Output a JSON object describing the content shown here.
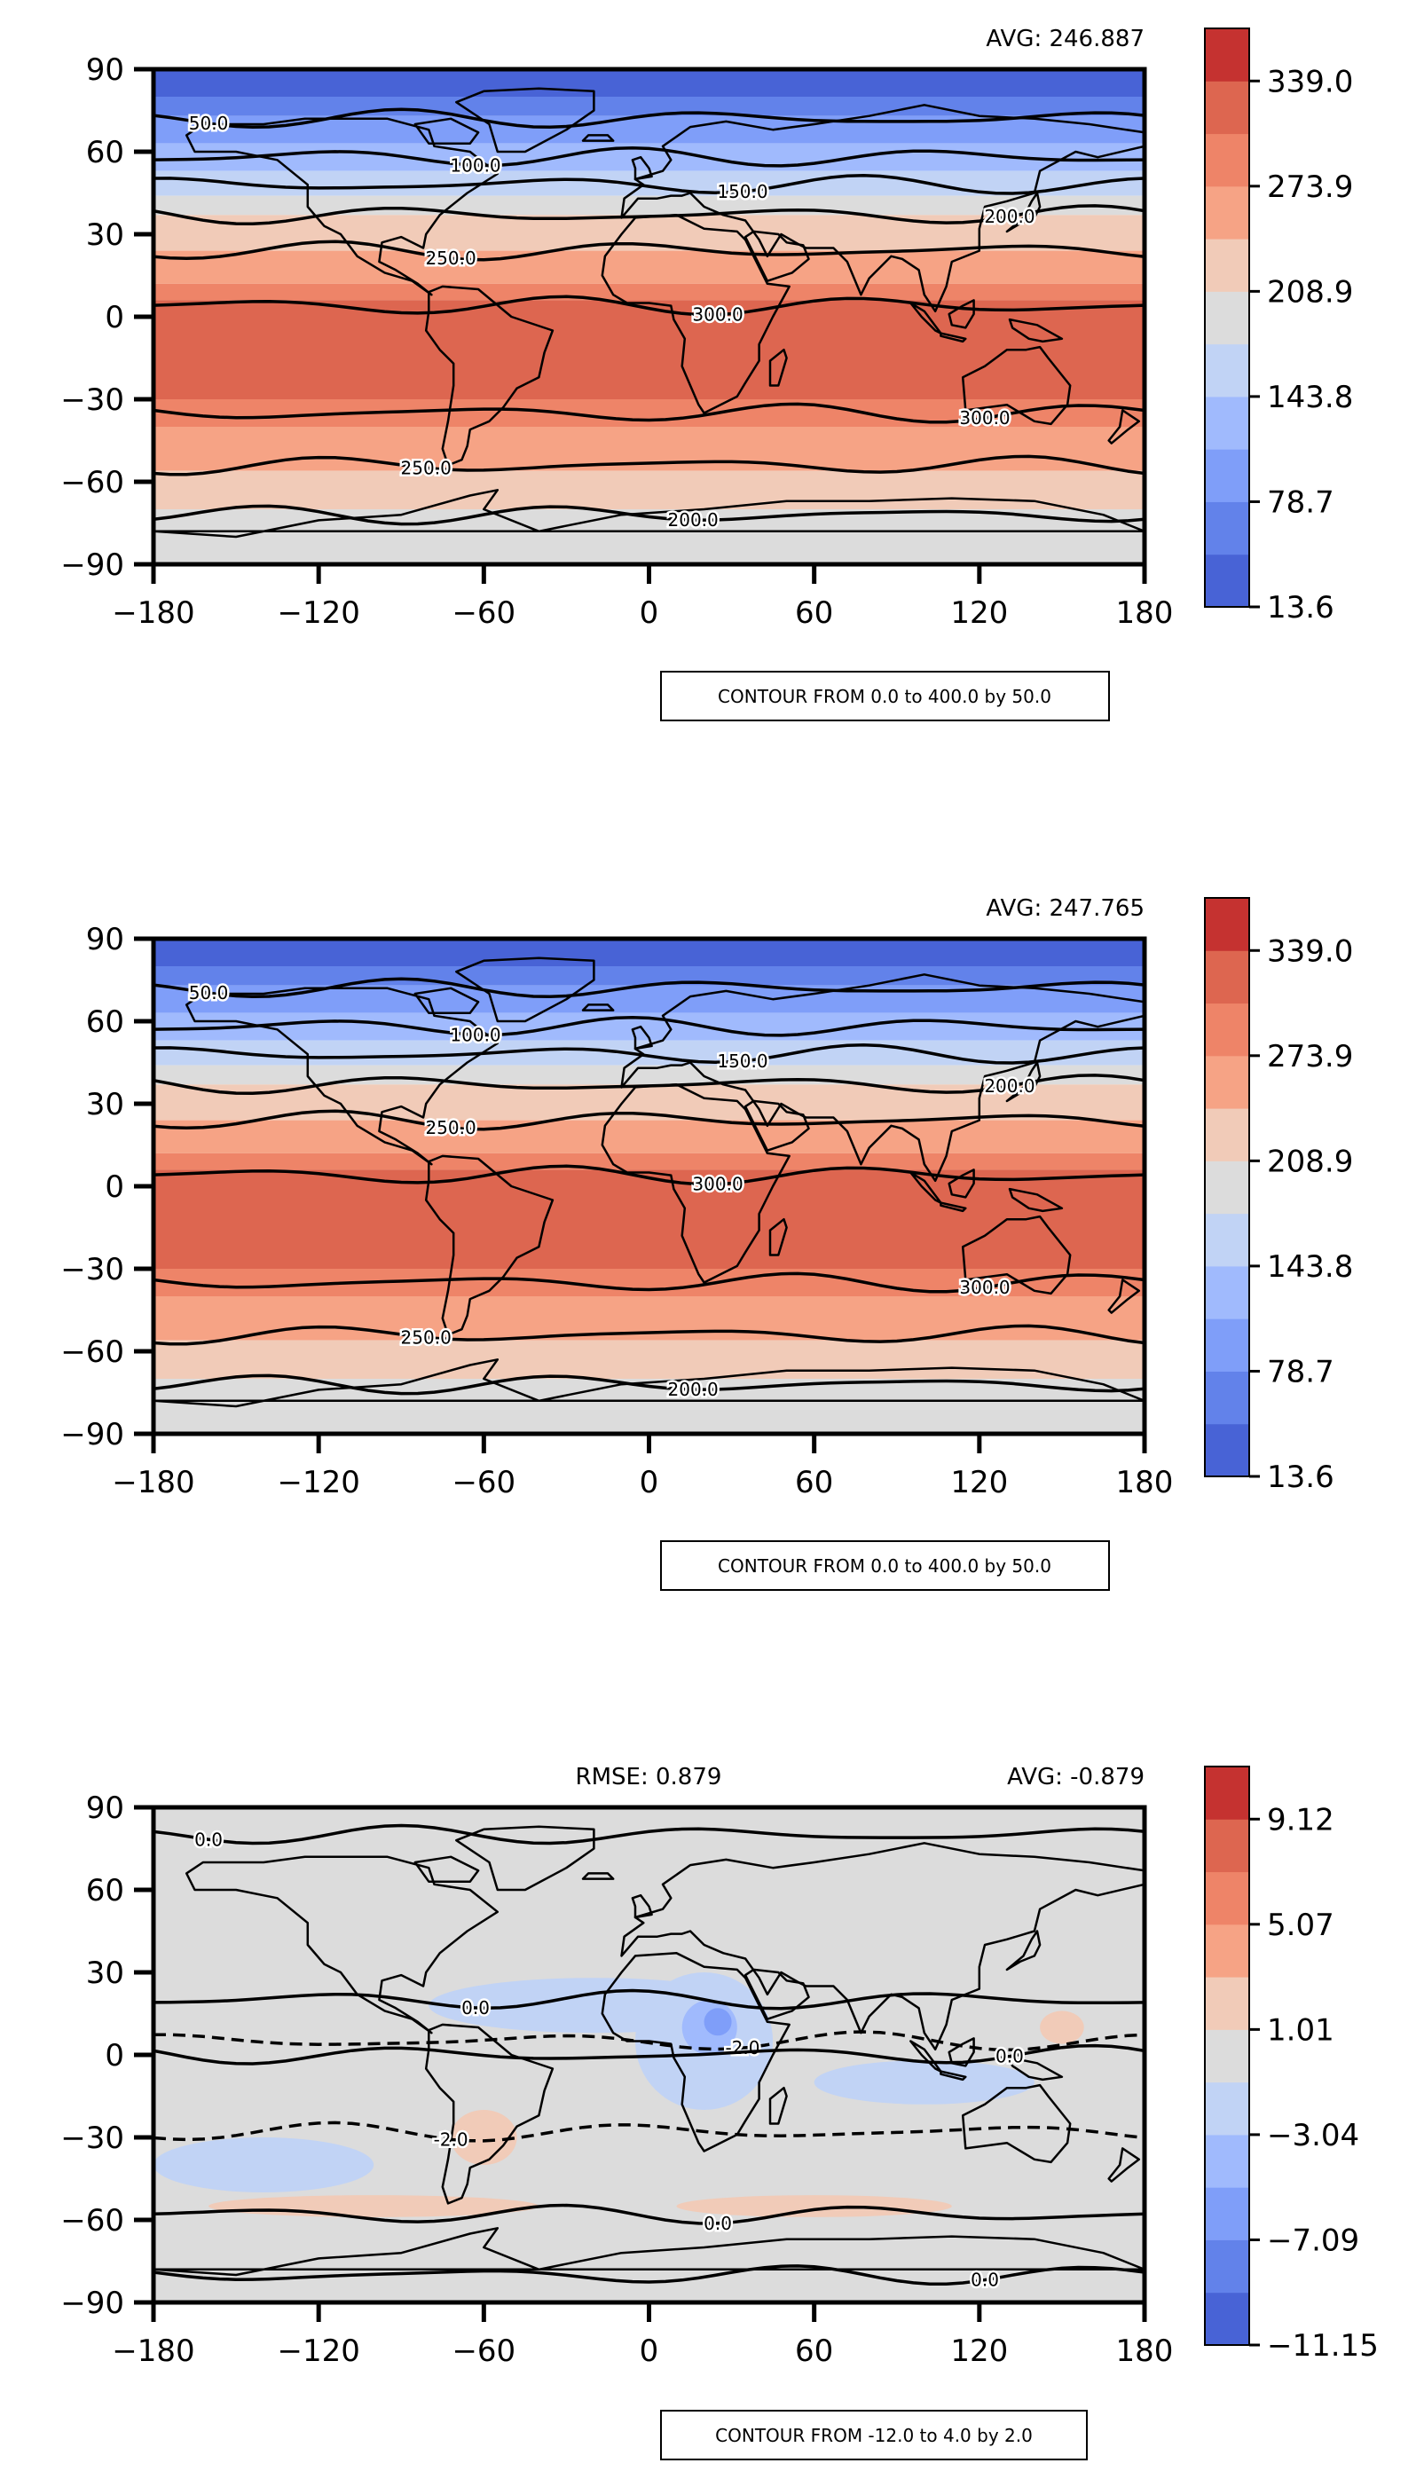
{
  "chart_data": [
    {
      "type": "heatmap",
      "title": "",
      "xlabel": "",
      "ylabel": "",
      "xlim": [
        -180,
        180
      ],
      "ylim": [
        -90,
        90
      ],
      "xticks": [
        "−180",
        "−120",
        "−60",
        "0",
        "60",
        "120",
        "180"
      ],
      "yticks": [
        "90",
        "60",
        "30",
        "0",
        "−30",
        "−60",
        "−90"
      ],
      "avg_label": "AVG: 246.887",
      "rmse_label": "",
      "contour_note": "CONTOUR FROM 0.0 to 400.0 by 50.0",
      "colorbar": {
        "min": 13.6,
        "max": 371.6,
        "ticks": [
          "339.0",
          "273.9",
          "208.9",
          "143.8",
          "78.7",
          "13.6"
        ],
        "colors": [
          "#4863d6",
          "#6282ea",
          "#7f9ef9",
          "#a0bafd",
          "#c1d3f5",
          "#dcdcdc",
          "#f1cbb8",
          "#f6a385",
          "#ee8468",
          "#dd6650",
          "#c53230"
        ]
      },
      "contours": [
        {
          "label": "50.0",
          "lat": 72
        },
        {
          "label": "100.0",
          "lat": 58
        },
        {
          "label": "150.0",
          "lat": 48
        },
        {
          "label": "200.0",
          "lat": 37
        },
        {
          "label": "250.0",
          "lat": 24
        },
        {
          "label": "300.0",
          "lat": 4
        },
        {
          "label": "300.0",
          "lat": -35
        },
        {
          "label": "250.0",
          "lat": -54
        },
        {
          "label": "200.0",
          "lat": -72
        }
      ],
      "bands": [
        {
          "lat_top": 90,
          "lat_bottom": 80,
          "color": "#4863d6"
        },
        {
          "lat_top": 80,
          "lat_bottom": 73,
          "color": "#6282ea"
        },
        {
          "lat_top": 73,
          "lat_bottom": 63,
          "color": "#7f9ef9"
        },
        {
          "lat_top": 63,
          "lat_bottom": 53,
          "color": "#a0bafd"
        },
        {
          "lat_top": 53,
          "lat_bottom": 44,
          "color": "#c1d3f5"
        },
        {
          "lat_top": 44,
          "lat_bottom": 37,
          "color": "#dcdcdc"
        },
        {
          "lat_top": 37,
          "lat_bottom": 24,
          "color": "#f1cbb8"
        },
        {
          "lat_top": 24,
          "lat_bottom": 12,
          "color": "#f6a385"
        },
        {
          "lat_top": 12,
          "lat_bottom": 6,
          "color": "#ee8468"
        },
        {
          "lat_top": 6,
          "lat_bottom": -30,
          "color": "#dd6650"
        },
        {
          "lat_top": -30,
          "lat_bottom": -40,
          "color": "#ee8468"
        },
        {
          "lat_top": -40,
          "lat_bottom": -56,
          "color": "#f6a385"
        },
        {
          "lat_top": -56,
          "lat_bottom": -70,
          "color": "#f1cbb8"
        },
        {
          "lat_top": -70,
          "lat_bottom": -90,
          "color": "#dcdcdc"
        }
      ]
    },
    {
      "type": "heatmap",
      "title": "",
      "xlabel": "",
      "ylabel": "",
      "xlim": [
        -180,
        180
      ],
      "ylim": [
        -90,
        90
      ],
      "xticks": [
        "−180",
        "−120",
        "−60",
        "0",
        "60",
        "120",
        "180"
      ],
      "yticks": [
        "90",
        "60",
        "30",
        "0",
        "−30",
        "−60",
        "−90"
      ],
      "avg_label": "AVG: 247.765",
      "rmse_label": "",
      "contour_note": "CONTOUR FROM 0.0 to 400.0 by 50.0",
      "colorbar": {
        "min": 13.6,
        "max": 371.6,
        "ticks": [
          "339.0",
          "273.9",
          "208.9",
          "143.8",
          "78.7",
          "13.6"
        ],
        "colors": [
          "#4863d6",
          "#6282ea",
          "#7f9ef9",
          "#a0bafd",
          "#c1d3f5",
          "#dcdcdc",
          "#f1cbb8",
          "#f6a385",
          "#ee8468",
          "#dd6650",
          "#c53230"
        ]
      },
      "contours": [
        {
          "label": "50.0",
          "lat": 72
        },
        {
          "label": "100.0",
          "lat": 58
        },
        {
          "label": "150.0",
          "lat": 48
        },
        {
          "label": "200.0",
          "lat": 37
        },
        {
          "label": "250.0",
          "lat": 24
        },
        {
          "label": "300.0",
          "lat": 4
        },
        {
          "label": "300.0",
          "lat": -35
        },
        {
          "label": "250.0",
          "lat": -54
        },
        {
          "label": "200.0",
          "lat": -72
        }
      ],
      "bands": [
        {
          "lat_top": 90,
          "lat_bottom": 80,
          "color": "#4863d6"
        },
        {
          "lat_top": 80,
          "lat_bottom": 73,
          "color": "#6282ea"
        },
        {
          "lat_top": 73,
          "lat_bottom": 63,
          "color": "#7f9ef9"
        },
        {
          "lat_top": 63,
          "lat_bottom": 53,
          "color": "#a0bafd"
        },
        {
          "lat_top": 53,
          "lat_bottom": 44,
          "color": "#c1d3f5"
        },
        {
          "lat_top": 44,
          "lat_bottom": 37,
          "color": "#dcdcdc"
        },
        {
          "lat_top": 37,
          "lat_bottom": 24,
          "color": "#f1cbb8"
        },
        {
          "lat_top": 24,
          "lat_bottom": 12,
          "color": "#f6a385"
        },
        {
          "lat_top": 12,
          "lat_bottom": 6,
          "color": "#ee8468"
        },
        {
          "lat_top": 6,
          "lat_bottom": -30,
          "color": "#dd6650"
        },
        {
          "lat_top": -30,
          "lat_bottom": -40,
          "color": "#ee8468"
        },
        {
          "lat_top": -40,
          "lat_bottom": -56,
          "color": "#f6a385"
        },
        {
          "lat_top": -56,
          "lat_bottom": -70,
          "color": "#f1cbb8"
        },
        {
          "lat_top": -70,
          "lat_bottom": -90,
          "color": "#dcdcdc"
        }
      ]
    },
    {
      "type": "heatmap",
      "title": "",
      "xlabel": "",
      "ylabel": "",
      "xlim": [
        -180,
        180
      ],
      "ylim": [
        -90,
        90
      ],
      "xticks": [
        "−180",
        "−120",
        "−60",
        "0",
        "60",
        "120",
        "180"
      ],
      "yticks": [
        "90",
        "60",
        "30",
        "0",
        "−30",
        "−60",
        "−90"
      ],
      "avg_label": "AVG: -0.879",
      "rmse_label": "RMSE: 0.879",
      "contour_note": "CONTOUR FROM -12.0 to 4.0 by 2.0",
      "colorbar": {
        "min": -11.15,
        "max": 11.15,
        "ticks": [
          "9.12",
          "5.07",
          "1.01",
          "−3.04",
          "−7.09",
          "−11.15"
        ],
        "colors": [
          "#4863d6",
          "#6282ea",
          "#7f9ef9",
          "#a0bafd",
          "#c1d3f5",
          "#dcdcdc",
          "#f1cbb8",
          "#f6a385",
          "#ee8468",
          "#dd6650",
          "#c53230"
        ]
      },
      "contours": [
        {
          "label": "0.0",
          "lat": 80
        },
        {
          "label": "0.0",
          "lat": 20
        },
        {
          "label": "-2.0",
          "lat": 5
        },
        {
          "label": "0.0",
          "lat": 0
        },
        {
          "label": "-2.0",
          "lat": -28
        },
        {
          "label": "0.0",
          "lat": -58
        },
        {
          "label": "0.0",
          "lat": -80
        }
      ],
      "bands": [
        {
          "lat_top": 90,
          "lat_bottom": -90,
          "color": "#dcdcdc"
        }
      ],
      "patches": [
        {
          "lon": -20,
          "lat": 18,
          "rx": 60,
          "ry": 10,
          "color": "#c1d3f5"
        },
        {
          "lon": 20,
          "lat": 5,
          "rx": 25,
          "ry": 25,
          "color": "#c1d3f5"
        },
        {
          "lon": 22,
          "lat": 10,
          "rx": 10,
          "ry": 10,
          "color": "#a0bafd"
        },
        {
          "lon": 25,
          "lat": 12,
          "rx": 5,
          "ry": 5,
          "color": "#7f9ef9"
        },
        {
          "lon": 100,
          "lat": -10,
          "rx": 40,
          "ry": 8,
          "color": "#c1d3f5"
        },
        {
          "lon": -140,
          "lat": -40,
          "rx": 40,
          "ry": 10,
          "color": "#c1d3f5"
        },
        {
          "lon": -60,
          "lat": -30,
          "rx": 12,
          "ry": 10,
          "color": "#f1cbb8"
        },
        {
          "lon": -100,
          "lat": -55,
          "rx": 60,
          "ry": 4,
          "color": "#f1cbb8"
        },
        {
          "lon": 60,
          "lat": -55,
          "rx": 50,
          "ry": 4,
          "color": "#f1cbb8"
        },
        {
          "lon": 150,
          "lat": 10,
          "rx": 8,
          "ry": 6,
          "color": "#f1cbb8"
        }
      ]
    }
  ]
}
